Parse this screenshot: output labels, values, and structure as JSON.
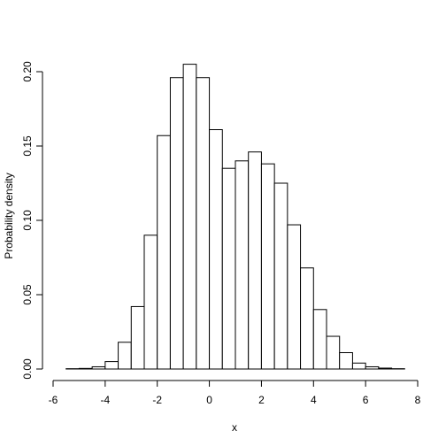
{
  "chart_data": {
    "type": "bar",
    "subtype": "histogram",
    "title": "",
    "xlabel": "x",
    "ylabel": "Probability density",
    "xlim": [
      -6,
      8
    ],
    "ylim": [
      0,
      0.21
    ],
    "xticks": [
      -6,
      -4,
      -2,
      0,
      2,
      4,
      6,
      8
    ],
    "xtick_labels": [
      "-6",
      "-4",
      "-2",
      "0",
      "2",
      "4",
      "6",
      "8"
    ],
    "yticks": [
      0.0,
      0.05,
      0.1,
      0.15,
      0.2
    ],
    "ytick_labels": [
      "0.00",
      "0.05",
      "0.10",
      "0.15",
      "0.20"
    ],
    "grid": false,
    "legend": "none",
    "bin_width": 0.5,
    "bin_starts": [
      -5.5,
      -5.0,
      -4.5,
      -4.0,
      -3.5,
      -3.0,
      -2.5,
      -2.0,
      -1.5,
      -1.0,
      -0.5,
      0.0,
      0.5,
      1.0,
      1.5,
      2.0,
      2.5,
      3.0,
      3.5,
      4.0,
      4.5,
      5.0,
      5.5,
      6.0,
      6.5,
      7.0
    ],
    "values": [
      0.0002,
      0.0004,
      0.0015,
      0.005,
      0.018,
      0.042,
      0.09,
      0.157,
      0.196,
      0.205,
      0.196,
      0.161,
      0.135,
      0.14,
      0.146,
      0.138,
      0.125,
      0.097,
      0.068,
      0.04,
      0.022,
      0.011,
      0.004,
      0.0015,
      0.0006,
      0.0002
    ]
  }
}
